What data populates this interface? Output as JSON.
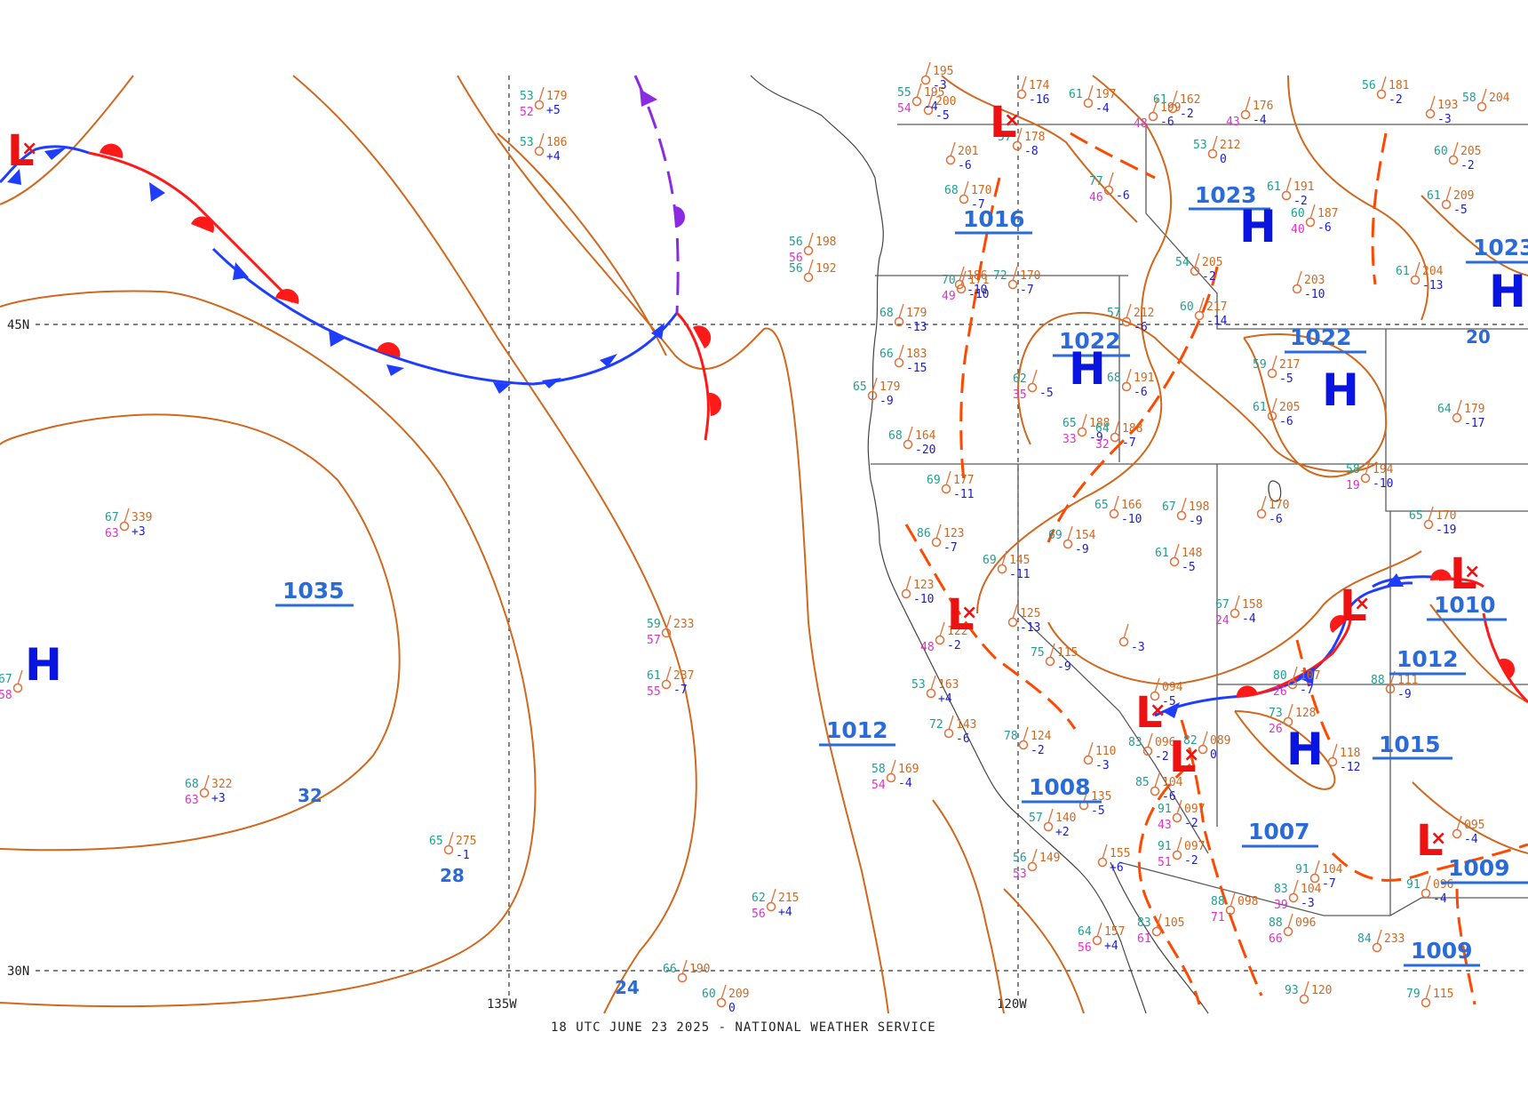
{
  "footer": "18 UTC JUNE 23 2025 - NATIONAL WEATHER SERVICE",
  "grid_labels": {
    "lat45": "45N",
    "lat30": "30N",
    "lon135": "135W",
    "lon120": "120W"
  },
  "pressure_centers": [
    {
      "id": "h-pacific",
      "type": "H",
      "label": "1035"
    },
    {
      "id": "h-idaho",
      "type": "H",
      "label": "1023"
    },
    {
      "id": "h-oregon",
      "type": "H",
      "label": "1022"
    },
    {
      "id": "h-wyoming",
      "type": "H",
      "label": "1022"
    },
    {
      "id": "h-montana-east",
      "type": "H",
      "label": "1023"
    },
    {
      "id": "h-arizona",
      "type": "H",
      "label": "1015"
    },
    {
      "id": "l-gulf-alaska",
      "type": "L",
      "label": ""
    },
    {
      "id": "l-bc",
      "type": "L",
      "label": ""
    },
    {
      "id": "l-nevada",
      "type": "L",
      "label": ""
    },
    {
      "id": "l-socal-1",
      "type": "L",
      "label": ""
    },
    {
      "id": "l-socal-2",
      "type": "L",
      "label": "1008"
    },
    {
      "id": "l-colorado",
      "type": "L",
      "label": "1010"
    },
    {
      "id": "l-nebraska",
      "type": "L",
      "label": ""
    },
    {
      "id": "l-texas",
      "type": "L",
      "label": "1009"
    }
  ],
  "isobar_labels": [
    "1016",
    "1012",
    "1012",
    "1007",
    "1009",
    "32",
    "28",
    "24",
    "20"
  ],
  "stations": [
    {
      "t": "53",
      "p": "179",
      "d": "52",
      "c": "+5"
    },
    {
      "t": "53",
      "p": "186",
      "d": "",
      "c": "+4"
    },
    {
      "t": "67",
      "p": "339",
      "d": "63",
      "c": "+3"
    },
    {
      "t": "67",
      "p": "",
      "d": "58",
      "c": ""
    },
    {
      "t": "68",
      "p": "322",
      "d": "63",
      "c": "+3"
    },
    {
      "t": "65",
      "p": "275",
      "d": "",
      "c": "-1"
    },
    {
      "t": "59",
      "p": "233",
      "d": "57",
      "c": ""
    },
    {
      "t": "61",
      "p": "237",
      "d": "55",
      "c": "-7"
    },
    {
      "t": "62",
      "p": "215",
      "d": "56",
      "c": "+4"
    },
    {
      "t": "66",
      "p": "190",
      "d": "",
      "c": ""
    },
    {
      "t": "60",
      "p": "209",
      "d": "",
      "c": "0"
    },
    {
      "t": "56",
      "p": "198",
      "d": "56",
      "c": ""
    },
    {
      "t": "56",
      "p": "192",
      "d": "",
      "c": ""
    },
    {
      "t": "68",
      "p": "179",
      "d": "",
      "c": "-13"
    },
    {
      "t": "66",
      "p": "183",
      "d": "",
      "c": "-15"
    },
    {
      "t": "65",
      "p": "179",
      "d": "",
      "c": "-9"
    },
    {
      "t": "68",
      "p": "164",
      "d": "",
      "c": "-20"
    },
    {
      "t": "69",
      "p": "177",
      "d": "",
      "c": "-11"
    },
    {
      "t": "86",
      "p": "123",
      "d": "",
      "c": "-7"
    },
    {
      "t": "",
      "p": "123",
      "d": "",
      "c": "-10"
    },
    {
      "t": "70",
      "p": "171",
      "d": "49",
      "c": "-10"
    },
    {
      "t": "72",
      "p": "170",
      "d": "",
      "c": "-7"
    },
    {
      "t": "68",
      "p": "170",
      "d": "",
      "c": "-7"
    },
    {
      "t": "57",
      "p": "178",
      "d": "",
      "c": "-8"
    },
    {
      "t": "53",
      "p": "212",
      "d": "",
      "c": "0"
    },
    {
      "t": "61",
      "p": "191",
      "d": "",
      "c": "-2"
    },
    {
      "t": "60",
      "p": "187",
      "d": "40",
      "c": "-6"
    },
    {
      "t": "61",
      "p": "209",
      "d": "",
      "c": "-5"
    },
    {
      "t": "60",
      "p": "205",
      "d": "",
      "c": "-2"
    },
    {
      "t": "54",
      "p": "205",
      "d": "",
      "c": "-2"
    },
    {
      "t": "",
      "p": "203",
      "d": "",
      "c": "-10"
    },
    {
      "t": "61",
      "p": "204",
      "d": "",
      "c": "-13"
    },
    {
      "t": "57",
      "p": "212",
      "d": "",
      "c": "-6"
    },
    {
      "t": "60",
      "p": "217",
      "d": "",
      "c": "-14"
    },
    {
      "t": "68",
      "p": "191",
      "d": "",
      "c": "-6"
    },
    {
      "t": "62",
      "p": "",
      "d": "35",
      "c": "-5"
    },
    {
      "t": "65",
      "p": "188",
      "d": "33",
      "c": "-9"
    },
    {
      "t": "64",
      "p": "188",
      "d": "32",
      "c": "-7"
    },
    {
      "t": "59",
      "p": "217",
      "d": "",
      "c": "-5"
    },
    {
      "t": "61",
      "p": "205",
      "d": "",
      "c": "-6"
    },
    {
      "t": "64",
      "p": "179",
      "d": "",
      "c": "-17"
    },
    {
      "t": "58",
      "p": "194",
      "d": "19",
      "c": "-10"
    },
    {
      "t": "69",
      "p": "154",
      "d": "",
      "c": "-9"
    },
    {
      "t": "69",
      "p": "145",
      "d": "",
      "c": "-11"
    },
    {
      "t": "65",
      "p": "166",
      "d": "",
      "c": "-10"
    },
    {
      "t": "67",
      "p": "198",
      "d": "",
      "c": "-9"
    },
    {
      "t": "",
      "p": "170",
      "d": "",
      "c": "-6"
    },
    {
      "t": "61",
      "p": "148",
      "d": "",
      "c": "-5"
    },
    {
      "t": "67",
      "p": "158",
      "d": "24",
      "c": "-4"
    },
    {
      "t": "65",
      "p": "170",
      "d": "",
      "c": "-19"
    },
    {
      "t": "",
      "p": "125",
      "d": "",
      "c": "-13"
    },
    {
      "t": "75",
      "p": "115",
      "d": "",
      "c": "-9"
    },
    {
      "t": "",
      "p": "",
      "d": "",
      "c": "-3"
    },
    {
      "t": "",
      "p": "122",
      "d": "48",
      "c": "-2"
    },
    {
      "t": "53",
      "p": "163",
      "d": "",
      "c": "+4"
    },
    {
      "t": "72",
      "p": "143",
      "d": "",
      "c": "-6"
    },
    {
      "t": "78",
      "p": "124",
      "d": "",
      "c": "-2"
    },
    {
      "t": "",
      "p": "110",
      "d": "",
      "c": "-3"
    },
    {
      "t": "83",
      "p": "096",
      "d": "",
      "c": "-2"
    },
    {
      "t": "",
      "p": "094",
      "d": "",
      "c": "-5"
    },
    {
      "t": "82",
      "p": "089",
      "d": "",
      "c": "0"
    },
    {
      "t": "73",
      "p": "128",
      "d": "26",
      "c": ""
    },
    {
      "t": "",
      "p": "118",
      "d": "",
      "c": "-12"
    },
    {
      "t": "80",
      "p": "107",
      "d": "26",
      "c": "-7"
    },
    {
      "t": "88",
      "p": "111",
      "d": "",
      "c": "-9"
    },
    {
      "t": "58",
      "p": "169",
      "d": "54",
      "c": "-4"
    },
    {
      "t": "85",
      "p": "104",
      "d": "",
      "c": "-6"
    },
    {
      "t": "91",
      "p": "097",
      "d": "43",
      "c": "-2"
    },
    {
      "t": "91",
      "p": "097",
      "d": "51",
      "c": "-2"
    },
    {
      "t": "",
      "p": "135",
      "d": "",
      "c": "-5"
    },
    {
      "t": "57",
      "p": "140",
      "d": "",
      "c": "+2"
    },
    {
      "t": "56",
      "p": "149",
      "d": "53",
      "c": ""
    },
    {
      "t": "",
      "p": "155",
      "d": "",
      "c": "+6"
    },
    {
      "t": "64",
      "p": "157",
      "d": "56",
      "c": "+4"
    },
    {
      "t": "83",
      "p": "105",
      "d": "61",
      "c": ""
    },
    {
      "t": "88",
      "p": "098",
      "d": "71",
      "c": ""
    },
    {
      "t": "88",
      "p": "096",
      "d": "66",
      "c": ""
    },
    {
      "t": "84",
      "p": "233",
      "d": "",
      "c": ""
    },
    {
      "t": "91",
      "p": "104",
      "d": "",
      "c": "-7"
    },
    {
      "t": "83",
      "p": "104",
      "d": "39",
      "c": "-3"
    },
    {
      "t": "91",
      "p": "096",
      "d": "",
      "c": "-4"
    },
    {
      "t": "",
      "p": "095",
      "d": "",
      "c": "-4"
    },
    {
      "t": "93",
      "p": "120",
      "d": "",
      "c": ""
    },
    {
      "t": "79",
      "p": "115",
      "d": "",
      "c": ""
    },
    {
      "t": "61",
      "p": "197",
      "d": "",
      "c": "-4"
    },
    {
      "t": "61",
      "p": "162",
      "d": "",
      "c": "-2"
    },
    {
      "t": "",
      "p": "199",
      "d": "48",
      "c": "-6"
    },
    {
      "t": "",
      "p": "176",
      "d": "43",
      "c": "-4"
    },
    {
      "t": "56",
      "p": "181",
      "d": "",
      "c": "-2"
    },
    {
      "t": "",
      "p": "193",
      "d": "",
      "c": "-3"
    },
    {
      "t": "58",
      "p": "204",
      "d": "",
      "c": ""
    },
    {
      "t": "77",
      "p": "",
      "d": "46",
      "c": "-6"
    },
    {
      "t": "",
      "p": "174",
      "d": "",
      "c": "-16"
    },
    {
      "t": "",
      "p": "195",
      "d": "",
      "c": "-3"
    },
    {
      "t": "",
      "p": "200",
      "d": "",
      "c": "-5"
    },
    {
      "t": "55",
      "p": "195",
      "d": "54",
      "c": "-4"
    },
    {
      "t": "",
      "p": "201",
      "d": "",
      "c": "-6"
    },
    {
      "t": "",
      "p": "186",
      "d": "",
      "c": "-10"
    }
  ]
}
